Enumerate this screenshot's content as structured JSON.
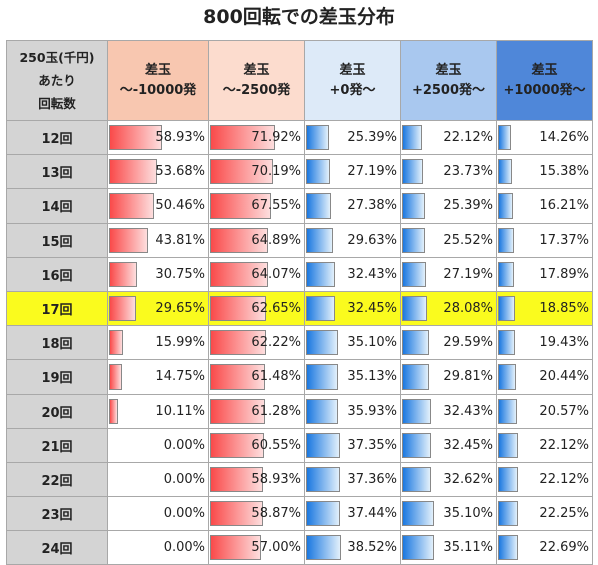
{
  "title": "800回転での差玉分布",
  "chart_data": {
    "type": "table",
    "corner_header": [
      "250玉(千円)",
      "あたり",
      "回転数"
    ],
    "columns": [
      {
        "label_line1": "差玉",
        "label_line2": "～-10000発",
        "bg": "#f8c7b0",
        "kind": "neg"
      },
      {
        "label_line1": "差玉",
        "label_line2": "～-2500発",
        "bg": "#fcdcce",
        "kind": "neg"
      },
      {
        "label_line1": "差玉",
        "label_line2": "+0発～",
        "bg": "#ddeaf8",
        "kind": "pos"
      },
      {
        "label_line1": "差玉",
        "label_line2": "+2500発～",
        "bg": "#a9c8ef",
        "kind": "pos"
      },
      {
        "label_line1": "差玉",
        "label_line2": "+10000発～",
        "bg": "#4f87d9",
        "kind": "pos"
      }
    ],
    "rows": [
      {
        "label": "12回",
        "values": [
          58.93,
          71.92,
          25.39,
          22.12,
          14.26
        ],
        "text": [
          "58.93%",
          "71.92%",
          "25.39%",
          "22.12%",
          "14.26%"
        ]
      },
      {
        "label": "13回",
        "values": [
          53.68,
          70.19,
          27.19,
          23.73,
          15.38
        ],
        "text": [
          "53.68%",
          "70.19%",
          "27.19%",
          "23.73%",
          "15.38%"
        ]
      },
      {
        "label": "14回",
        "values": [
          50.46,
          67.55,
          27.38,
          25.39,
          16.21
        ],
        "text": [
          "50.46%",
          "67.55%",
          "27.38%",
          "25.39%",
          "16.21%"
        ]
      },
      {
        "label": "15回",
        "values": [
          43.81,
          64.89,
          29.63,
          25.52,
          17.37
        ],
        "text": [
          "43.81%",
          "64.89%",
          "29.63%",
          "25.52%",
          "17.37%"
        ]
      },
      {
        "label": "16回",
        "values": [
          30.75,
          64.07,
          32.43,
          27.19,
          17.89
        ],
        "text": [
          "30.75%",
          "64.07%",
          "32.43%",
          "27.19%",
          "17.89%"
        ]
      },
      {
        "label": "17回",
        "values": [
          29.65,
          62.65,
          32.45,
          28.08,
          18.85
        ],
        "text": [
          "29.65%",
          "62.65%",
          "32.45%",
          "28.08%",
          "18.85%"
        ],
        "highlight": true
      },
      {
        "label": "18回",
        "values": [
          15.99,
          62.22,
          35.1,
          29.59,
          19.43
        ],
        "text": [
          "15.99%",
          "62.22%",
          "35.10%",
          "29.59%",
          "19.43%"
        ]
      },
      {
        "label": "19回",
        "values": [
          14.75,
          61.48,
          35.13,
          29.81,
          20.44
        ],
        "text": [
          "14.75%",
          "61.48%",
          "35.13%",
          "29.81%",
          "20.44%"
        ]
      },
      {
        "label": "20回",
        "values": [
          10.11,
          61.28,
          35.93,
          32.43,
          20.57
        ],
        "text": [
          "10.11%",
          "61.28%",
          "35.93%",
          "32.43%",
          "20.57%"
        ]
      },
      {
        "label": "21回",
        "values": [
          0.0,
          60.55,
          37.35,
          32.45,
          22.12
        ],
        "text": [
          "0.00%",
          "60.55%",
          "37.35%",
          "32.45%",
          "22.12%"
        ]
      },
      {
        "label": "22回",
        "values": [
          0.0,
          58.93,
          37.36,
          32.62,
          22.12
        ],
        "text": [
          "0.00%",
          "58.93%",
          "37.36%",
          "32.62%",
          "22.12%"
        ]
      },
      {
        "label": "23回",
        "values": [
          0.0,
          58.87,
          37.44,
          35.1,
          22.25
        ],
        "text": [
          "0.00%",
          "58.87%",
          "37.44%",
          "35.10%",
          "22.25%"
        ]
      },
      {
        "label": "24回",
        "values": [
          0.0,
          57.0,
          38.52,
          35.11,
          22.69
        ],
        "text": [
          "0.00%",
          "57.00%",
          "38.52%",
          "35.11%",
          "22.69%"
        ]
      }
    ],
    "highlight_color": "#fafb1e",
    "negative_bar_colors": [
      "#fa4a4a",
      "#fddede"
    ],
    "positive_bar_colors": [
      "#1b78e0",
      "#e2f0fb"
    ]
  }
}
